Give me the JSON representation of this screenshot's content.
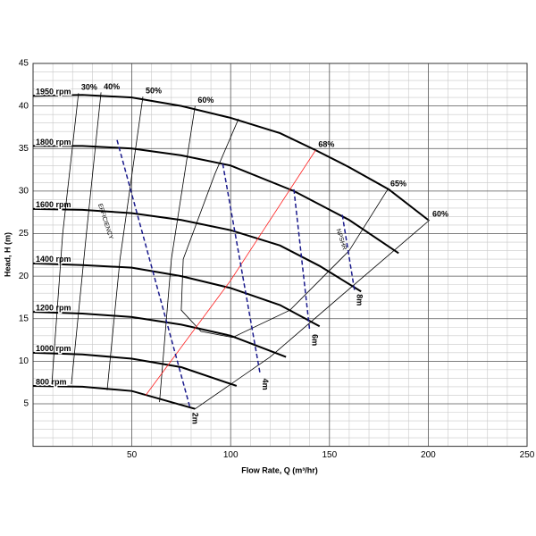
{
  "chart_data": {
    "type": "line",
    "xlabel": "Flow Rate, Q (m³/hr)",
    "ylabel": "Head, H (m)",
    "xlim": [
      0,
      250
    ],
    "ylim": [
      0,
      45
    ],
    "xticks": [
      50,
      100,
      150,
      200,
      250
    ],
    "yticks": [
      5,
      10,
      15,
      20,
      25,
      30,
      35,
      40,
      45
    ],
    "grid": true,
    "annotations": [
      "EFFICIENCY",
      "NPSHR"
    ],
    "speed_curves": [
      {
        "name": "1950 rpm",
        "color": "#000000",
        "x": [
          0,
          25,
          50,
          75,
          100,
          125,
          143,
          160,
          180,
          200
        ],
        "values": [
          41.2,
          41.3,
          41,
          40,
          38.6,
          36.8,
          34.8,
          32.8,
          30.2,
          26.6
        ]
      },
      {
        "name": "1800 rpm",
        "color": "#000000",
        "x": [
          0,
          25,
          50,
          75,
          100,
          132,
          160,
          185
        ],
        "values": [
          35.3,
          35.3,
          35,
          34.2,
          33,
          30,
          26.6,
          22.7
        ]
      },
      {
        "name": "1600 rpm",
        "color": "#000000",
        "x": [
          0,
          25,
          50,
          75,
          100,
          125,
          145,
          166
        ],
        "values": [
          27.9,
          27.8,
          27.4,
          26.6,
          25.4,
          23.6,
          21.2,
          18.2
        ]
      },
      {
        "name": "1400 rpm",
        "color": "#000000",
        "x": [
          0,
          25,
          50,
          75,
          100,
          125,
          145
        ],
        "values": [
          21.5,
          21.3,
          21,
          20,
          18.6,
          16.6,
          14.1
        ]
      },
      {
        "name": "1200 rpm",
        "color": "#000000",
        "x": [
          0,
          25,
          50,
          75,
          100,
          128
        ],
        "values": [
          15.8,
          15.6,
          15.2,
          14.3,
          13,
          10.5
        ]
      },
      {
        "name": "1000 rpm",
        "color": "#000000",
        "x": [
          0,
          25,
          50,
          75,
          103
        ],
        "values": [
          11,
          10.8,
          10.3,
          9.3,
          7.1
        ]
      },
      {
        "name": "800 rpm",
        "color": "#000000",
        "x": [
          0,
          25,
          50,
          82
        ],
        "values": [
          7.1,
          7,
          6.5,
          4.4
        ]
      }
    ],
    "efficiency_curves": [
      {
        "name": "30%",
        "color": "#000000",
        "x": [
          9.5,
          15,
          23
        ],
        "values": [
          7.3,
          25,
          41.5
        ]
      },
      {
        "name": "40%",
        "color": "#000000",
        "x": [
          19.4,
          27,
          34.4
        ],
        "values": [
          7.3,
          25,
          41.6
        ]
      },
      {
        "name": "50%",
        "color": "#000000",
        "x": [
          37.5,
          44,
          55.6
        ],
        "values": [
          6.6,
          22,
          41.1
        ]
      },
      {
        "name": "60%",
        "color": "#000000",
        "x": [
          64,
          70,
          82
        ],
        "values": [
          5.2,
          22,
          40
        ]
      },
      {
        "name": "65%",
        "color": "#000000",
        "x": [
          104,
          92,
          76,
          75,
          85,
          101,
          130,
          160,
          179.5
        ],
        "values": [
          38.5,
          32,
          22,
          16,
          13.5,
          12.8,
          16,
          23,
          30.2
        ]
      },
      {
        "name": "60%",
        "color": "#000000",
        "x": [
          82,
          120,
          160,
          200.7
        ],
        "values": [
          4.4,
          10.5,
          18.5,
          26.6
        ]
      },
      {
        "name": "68%",
        "color": "#ff2020",
        "x": [
          57,
          100,
          143
        ],
        "values": [
          6,
          19.5,
          34.8
        ]
      }
    ],
    "npsh_curves": [
      {
        "name": "2m",
        "color": "#1a1a8c",
        "x": [
          42.5,
          79.6
        ],
        "values": [
          36,
          4.4
        ]
      },
      {
        "name": "4m",
        "color": "#1a1a8c",
        "x": [
          96,
          115
        ],
        "values": [
          33.2,
          8.4
        ]
      },
      {
        "name": "6m",
        "color": "#1a1a8c",
        "x": [
          132,
          140
        ],
        "values": [
          30.2,
          13.6
        ]
      },
      {
        "name": "8m",
        "color": "#1a1a8c",
        "x": [
          156.5,
          162.7
        ],
        "values": [
          27.2,
          18.3
        ]
      }
    ]
  }
}
